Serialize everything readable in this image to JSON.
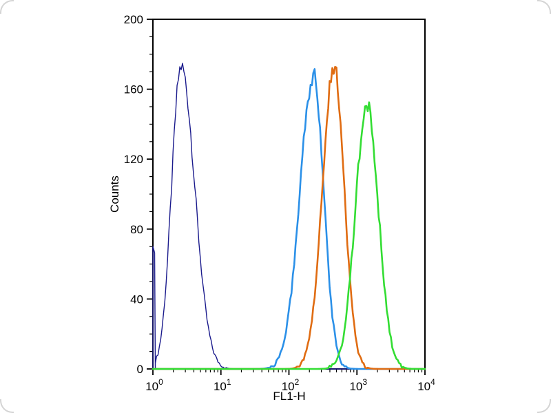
{
  "page": {
    "background_color": "#ffffff"
  },
  "chart_data": {
    "type": "line",
    "chart_kind": "flow-cytometry-histogram",
    "title": "",
    "xlabel": "FL1-H",
    "ylabel": "Counts",
    "x_scale": "log10",
    "xlim": [
      1,
      10000
    ],
    "ylim": [
      0,
      200
    ],
    "x_tick_base": "10",
    "x_tick_exponents": [
      0,
      1,
      2,
      3,
      4
    ],
    "y_major_ticks": [
      0,
      40,
      80,
      120,
      160,
      200
    ],
    "y_minor_step": 10,
    "grid": false,
    "legend": "none",
    "frame_color": "#000000",
    "series": [
      {
        "name": "negative-control-navy",
        "color": "#1a1a8c",
        "stroke_width": 1.4,
        "peak_x": 2.6,
        "peak_counts": 173,
        "sigma_left": 0.14,
        "sigma_right": 0.2,
        "edge_spike_counts": 70
      },
      {
        "name": "sample-blue",
        "color": "#2b90e8",
        "stroke_width": 2.6,
        "peak_x": 230,
        "peak_counts": 168,
        "sigma_left": 0.2,
        "sigma_right": 0.15
      },
      {
        "name": "sample-orange",
        "color": "#e06c12",
        "stroke_width": 2.6,
        "peak_x": 460,
        "peak_counts": 172,
        "sigma_left": 0.17,
        "sigma_right": 0.15
      },
      {
        "name": "sample-green",
        "color": "#33dd33",
        "stroke_width": 2.6,
        "peak_x": 1400,
        "peak_counts": 151,
        "sigma_left": 0.17,
        "sigma_right": 0.17
      }
    ]
  }
}
